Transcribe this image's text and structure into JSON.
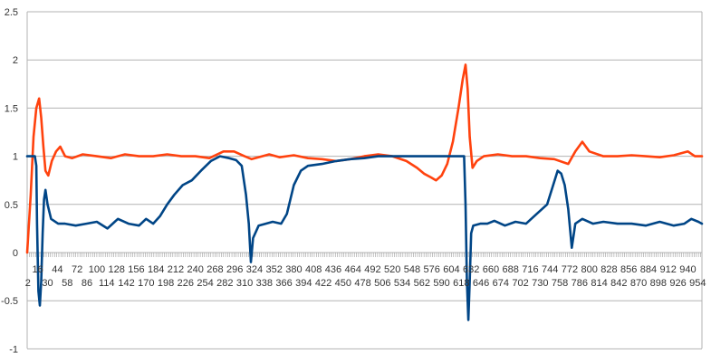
{
  "chart_data": {
    "type": "line",
    "title": "",
    "xlabel": "",
    "ylabel": "",
    "ylim": [
      -1,
      2.5
    ],
    "yticks": [
      -1,
      -0.5,
      0,
      0.5,
      1,
      1.5,
      2,
      2.5
    ],
    "ytick_labels": [
      "-1",
      "-0.5",
      "0",
      "0.5",
      "1",
      "1.5",
      "2",
      "2.5"
    ],
    "x_range": [
      1,
      960
    ],
    "x_tick_labels_row1": [
      "16",
      "44",
      "72",
      "100",
      "128",
      "156",
      "184",
      "212",
      "240",
      "268",
      "296",
      "324",
      "352",
      "380",
      "408",
      "436",
      "464",
      "492",
      "520",
      "548",
      "576",
      "604",
      "632",
      "660",
      "688",
      "716",
      "744",
      "772",
      "800",
      "828",
      "856",
      "884",
      "912",
      "940"
    ],
    "x_tick_labels_row2": [
      "2",
      "30",
      "58",
      "86",
      "114",
      "142",
      "170",
      "198",
      "226",
      "254",
      "282",
      "310",
      "338",
      "366",
      "394",
      "422",
      "450",
      "478",
      "506",
      "534",
      "562",
      "590",
      "618",
      "646",
      "674",
      "702",
      "730",
      "758",
      "786",
      "814",
      "842",
      "870",
      "898",
      "926",
      "954"
    ],
    "grid": true,
    "legend": "none",
    "series": [
      {
        "color": "#ff420e",
        "points": [
          [
            1,
            0.0
          ],
          [
            6,
            0.6
          ],
          [
            10,
            1.2
          ],
          [
            14,
            1.5
          ],
          [
            18,
            1.6
          ],
          [
            21,
            1.4
          ],
          [
            24,
            1.1
          ],
          [
            27,
            0.85
          ],
          [
            31,
            0.8
          ],
          [
            36,
            0.95
          ],
          [
            42,
            1.05
          ],
          [
            48,
            1.1
          ],
          [
            55,
            1.0
          ],
          [
            65,
            0.98
          ],
          [
            80,
            1.02
          ],
          [
            100,
            1.0
          ],
          [
            120,
            0.98
          ],
          [
            140,
            1.02
          ],
          [
            160,
            1.0
          ],
          [
            180,
            1.0
          ],
          [
            200,
            1.02
          ],
          [
            220,
            1.0
          ],
          [
            240,
            1.0
          ],
          [
            260,
            0.98
          ],
          [
            280,
            1.05
          ],
          [
            295,
            1.05
          ],
          [
            310,
            1.0
          ],
          [
            320,
            0.97
          ],
          [
            335,
            1.0
          ],
          [
            345,
            1.02
          ],
          [
            360,
            0.99
          ],
          [
            380,
            1.01
          ],
          [
            400,
            0.98
          ],
          [
            420,
            0.97
          ],
          [
            440,
            0.95
          ],
          [
            460,
            0.97
          ],
          [
            480,
            1.0
          ],
          [
            500,
            1.02
          ],
          [
            520,
            1.0
          ],
          [
            540,
            0.95
          ],
          [
            555,
            0.88
          ],
          [
            565,
            0.82
          ],
          [
            575,
            0.78
          ],
          [
            582,
            0.75
          ],
          [
            590,
            0.8
          ],
          [
            598,
            0.92
          ],
          [
            606,
            1.15
          ],
          [
            614,
            1.5
          ],
          [
            620,
            1.8
          ],
          [
            624,
            1.95
          ],
          [
            627,
            1.7
          ],
          [
            630,
            1.2
          ],
          [
            634,
            0.88
          ],
          [
            640,
            0.95
          ],
          [
            650,
            1.0
          ],
          [
            670,
            1.02
          ],
          [
            690,
            1.0
          ],
          [
            710,
            1.0
          ],
          [
            730,
            0.98
          ],
          [
            750,
            0.97
          ],
          [
            770,
            0.92
          ],
          [
            780,
            1.05
          ],
          [
            790,
            1.15
          ],
          [
            800,
            1.05
          ],
          [
            820,
            1.0
          ],
          [
            840,
            1.0
          ],
          [
            860,
            1.01
          ],
          [
            880,
            1.0
          ],
          [
            900,
            0.99
          ],
          [
            920,
            1.01
          ],
          [
            940,
            1.05
          ],
          [
            950,
            1.0
          ],
          [
            960,
            1.0
          ]
        ]
      },
      {
        "color": "#004586",
        "points": [
          [
            1,
            1.0
          ],
          [
            12,
            1.0
          ],
          [
            14,
            0.9
          ],
          [
            15,
            0.3
          ],
          [
            17,
            -0.4
          ],
          [
            19,
            -0.55
          ],
          [
            21,
            -0.3
          ],
          [
            23,
            0.2
          ],
          [
            25,
            0.55
          ],
          [
            27,
            0.65
          ],
          [
            30,
            0.5
          ],
          [
            35,
            0.35
          ],
          [
            45,
            0.3
          ],
          [
            55,
            0.3
          ],
          [
            70,
            0.28
          ],
          [
            85,
            0.3
          ],
          [
            100,
            0.32
          ],
          [
            115,
            0.25
          ],
          [
            130,
            0.35
          ],
          [
            145,
            0.3
          ],
          [
            160,
            0.28
          ],
          [
            170,
            0.35
          ],
          [
            180,
            0.3
          ],
          [
            190,
            0.38
          ],
          [
            200,
            0.5
          ],
          [
            210,
            0.6
          ],
          [
            222,
            0.7
          ],
          [
            235,
            0.75
          ],
          [
            248,
            0.85
          ],
          [
            262,
            0.95
          ],
          [
            275,
            1.0
          ],
          [
            288,
            0.98
          ],
          [
            298,
            0.96
          ],
          [
            306,
            0.9
          ],
          [
            312,
            0.6
          ],
          [
            316,
            0.3
          ],
          [
            319,
            -0.1
          ],
          [
            322,
            0.15
          ],
          [
            330,
            0.28
          ],
          [
            340,
            0.3
          ],
          [
            350,
            0.32
          ],
          [
            362,
            0.3
          ],
          [
            370,
            0.4
          ],
          [
            380,
            0.7
          ],
          [
            390,
            0.85
          ],
          [
            400,
            0.9
          ],
          [
            420,
            0.92
          ],
          [
            440,
            0.95
          ],
          [
            460,
            0.97
          ],
          [
            480,
            0.98
          ],
          [
            500,
            1.0
          ],
          [
            540,
            1.0
          ],
          [
            580,
            1.0
          ],
          [
            614,
            1.0
          ],
          [
            622,
            1.0
          ],
          [
            624,
            0.5
          ],
          [
            626,
            -0.3
          ],
          [
            628,
            -0.7
          ],
          [
            630,
            -0.3
          ],
          [
            632,
            0.2
          ],
          [
            635,
            0.28
          ],
          [
            645,
            0.3
          ],
          [
            655,
            0.3
          ],
          [
            665,
            0.33
          ],
          [
            680,
            0.28
          ],
          [
            695,
            0.32
          ],
          [
            710,
            0.3
          ],
          [
            725,
            0.4
          ],
          [
            740,
            0.5
          ],
          [
            755,
            0.85
          ],
          [
            760,
            0.82
          ],
          [
            765,
            0.7
          ],
          [
            770,
            0.45
          ],
          [
            775,
            0.05
          ],
          [
            780,
            0.3
          ],
          [
            790,
            0.35
          ],
          [
            805,
            0.3
          ],
          [
            820,
            0.32
          ],
          [
            840,
            0.3
          ],
          [
            860,
            0.3
          ],
          [
            880,
            0.28
          ],
          [
            900,
            0.32
          ],
          [
            920,
            0.28
          ],
          [
            935,
            0.3
          ],
          [
            945,
            0.35
          ],
          [
            955,
            0.32
          ],
          [
            960,
            0.3
          ]
        ]
      }
    ]
  }
}
